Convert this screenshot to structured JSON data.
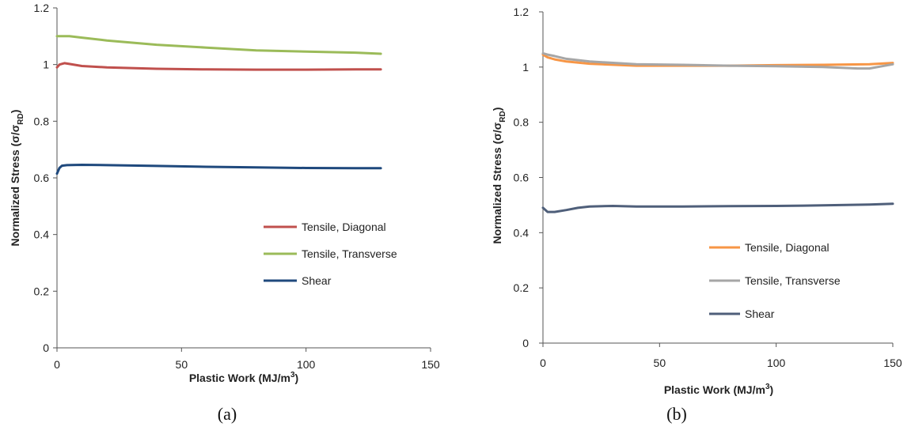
{
  "chart_data": [
    {
      "type": "line",
      "caption": "(a)",
      "xlabel_main": "Plastic Work (MJ/m",
      "xlabel_sup": "3",
      "xlabel_tail": ")",
      "ylabel_main": "Normalized Stress (σ/σ",
      "ylabel_sub": "RD",
      "ylabel_tail": ")",
      "xlim": [
        0,
        150
      ],
      "ylim": [
        0,
        1.2
      ],
      "xticks": [
        0,
        50,
        100,
        150
      ],
      "xtick_labels": [
        "0",
        "50",
        "100",
        "150"
      ],
      "yticks": [
        0,
        0.2,
        0.4,
        0.6,
        0.8,
        1,
        1.2
      ],
      "ytick_labels": [
        "0",
        "0.2",
        "0.4",
        "0.6",
        "0.8",
        "1",
        "1.2"
      ],
      "grid": false,
      "legend_position": "right-center",
      "series": [
        {
          "name": "Tensile, Diagonal",
          "color": "#c0504d",
          "x": [
            0,
            1,
            3,
            5,
            10,
            20,
            40,
            60,
            80,
            100,
            120,
            130
          ],
          "y": [
            0.99,
            1.0,
            1.005,
            1.002,
            0.995,
            0.99,
            0.985,
            0.983,
            0.982,
            0.982,
            0.983,
            0.983
          ]
        },
        {
          "name": "Tensile, Transverse",
          "color": "#9bbb59",
          "x": [
            0,
            5,
            10,
            20,
            40,
            60,
            80,
            100,
            120,
            130
          ],
          "y": [
            1.1,
            1.1,
            1.095,
            1.085,
            1.07,
            1.06,
            1.05,
            1.046,
            1.042,
            1.038
          ]
        },
        {
          "name": "Shear",
          "color": "#1f497d",
          "x": [
            0,
            1,
            2,
            4,
            10,
            20,
            40,
            60,
            80,
            100,
            120,
            130
          ],
          "y": [
            0.615,
            0.635,
            0.643,
            0.645,
            0.646,
            0.645,
            0.642,
            0.639,
            0.637,
            0.635,
            0.634,
            0.634
          ]
        }
      ]
    },
    {
      "type": "line",
      "caption": "(b)",
      "xlabel_main": "Plastic Work (MJ/m",
      "xlabel_sup": "3",
      "xlabel_tail": ")",
      "ylabel_main": "Normalized Stress (σ/σ",
      "ylabel_sub": "RD",
      "ylabel_tail": ")",
      "xlim": [
        0,
        150
      ],
      "ylim": [
        0,
        1.2
      ],
      "xticks": [
        0,
        50,
        100,
        150
      ],
      "xtick_labels": [
        "0",
        "50",
        "100",
        "150"
      ],
      "yticks": [
        0,
        0.2,
        0.4,
        0.6,
        0.8,
        1,
        1.2
      ],
      "ytick_labels": [
        "0",
        "0.2",
        "0.4",
        "0.6",
        "0.8",
        "1",
        "1.2"
      ],
      "grid": false,
      "legend_position": "right-bottom",
      "series": [
        {
          "name": "Tensile, Diagonal",
          "color": "#f79646",
          "x": [
            0,
            2,
            5,
            10,
            20,
            40,
            60,
            80,
            100,
            120,
            140,
            150
          ],
          "y": [
            1.045,
            1.035,
            1.028,
            1.02,
            1.012,
            1.005,
            1.005,
            1.005,
            1.007,
            1.008,
            1.01,
            1.015
          ]
        },
        {
          "name": "Tensile, Transverse",
          "color": "#a6a6a6",
          "x": [
            0,
            2,
            5,
            10,
            20,
            40,
            60,
            80,
            100,
            120,
            135,
            140,
            150
          ],
          "y": [
            1.05,
            1.045,
            1.04,
            1.03,
            1.02,
            1.01,
            1.008,
            1.005,
            1.003,
            1.0,
            0.995,
            0.995,
            1.01
          ]
        },
        {
          "name": "Shear",
          "color": "#4f5f7a",
          "x": [
            0,
            2,
            5,
            10,
            15,
            20,
            30,
            40,
            60,
            80,
            100,
            120,
            140,
            150
          ],
          "y": [
            0.49,
            0.475,
            0.475,
            0.482,
            0.49,
            0.495,
            0.497,
            0.495,
            0.495,
            0.496,
            0.497,
            0.499,
            0.502,
            0.505
          ]
        }
      ]
    }
  ]
}
